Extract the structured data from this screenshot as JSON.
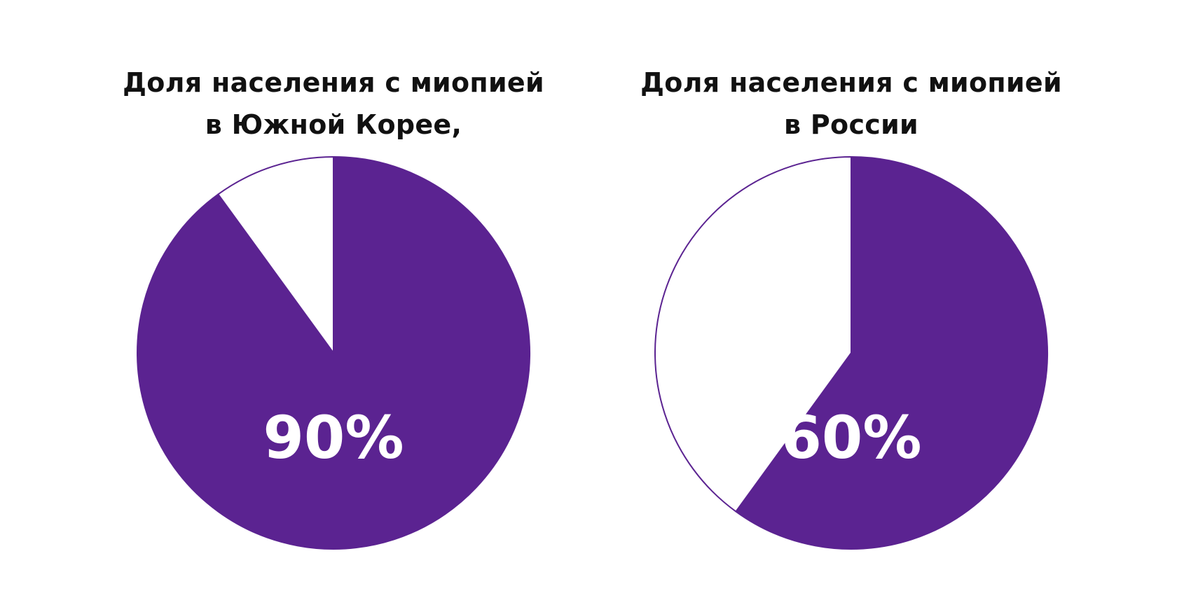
{
  "colors": {
    "accent": "#5b2391",
    "rest": "#ffffff",
    "title": "#111111",
    "label": "#ffffff"
  },
  "chart_data": [
    {
      "type": "pie",
      "title_lines": [
        "Доля населения с миопией",
        "в Южной Корее,"
      ],
      "slices": [
        {
          "label": "",
          "value": 90,
          "color": "#5b2391"
        },
        {
          "label": "",
          "value": 10,
          "color": "#ffffff"
        }
      ],
      "value_label": "90%"
    },
    {
      "type": "pie",
      "title_lines": [
        "Доля населения с миопией",
        "в России"
      ],
      "slices": [
        {
          "label": "",
          "value": 60,
          "color": "#5b2391"
        },
        {
          "label": "",
          "value": 40,
          "color": "#ffffff"
        }
      ],
      "value_label": "60%"
    }
  ]
}
